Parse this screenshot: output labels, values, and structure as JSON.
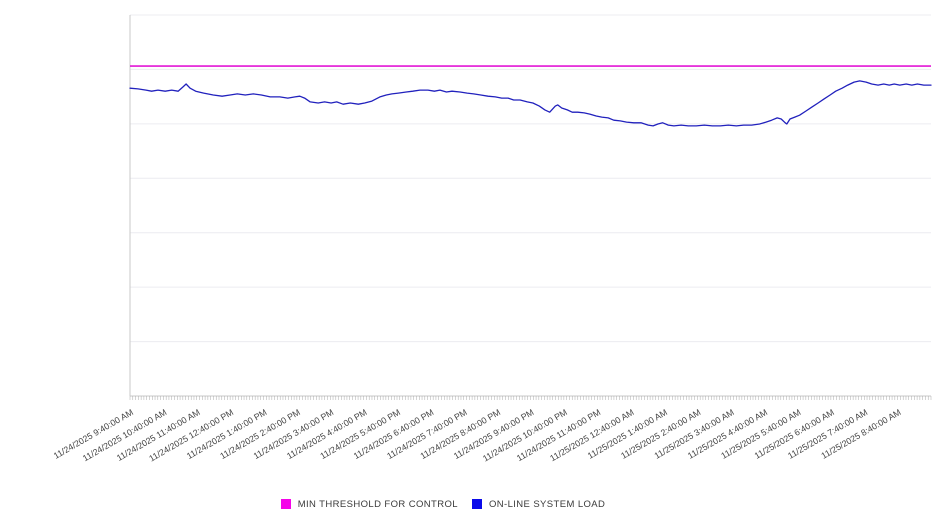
{
  "legend": {
    "items": [
      {
        "label": "MIN THRESHOLD FOR CONTROL",
        "color": "#f503e9",
        "swatch_icon": "magenta-square-icon"
      },
      {
        "label": "ON-LINE SYSTEM LOAD",
        "color": "#0b0bea",
        "swatch_icon": "blue-square-icon"
      }
    ]
  },
  "colors": {
    "threshold_line": "#e316d6",
    "load_line": "#2121bd",
    "gridline": "#ececf0",
    "axis_line": "#c9c9c9",
    "minor_tick": "#a9a9a9",
    "axis_label_text": "#444444",
    "background": "#ffffff"
  },
  "chart_data": {
    "type": "line",
    "title": "",
    "xlabel": "",
    "ylabel": "",
    "y_axis_tick_labels_visible": false,
    "note": "No y-axis tick labels are shown in the chart; series values are expressed as fraction of plot height (0 = bottom gridline, 1 = top gridline).",
    "grid": {
      "horizontal_lines": true,
      "vertical_lines": false,
      "horizontal_divisions": 7
    },
    "legend_position": "bottom-center",
    "x_span_hours": 24,
    "x_labels": [
      "11/24/2025 9:40:00 AM",
      "11/24/2025 10:40:00 AM",
      "11/24/2025 11:40:00 AM",
      "11/24/2025 12:40:00 PM",
      "11/24/2025 1:40:00 PM",
      "11/24/2025 2:40:00 PM",
      "11/24/2025 3:40:00 PM",
      "11/24/2025 4:40:00 PM",
      "11/24/2025 5:40:00 PM",
      "11/24/2025 6:40:00 PM",
      "11/24/2025 7:40:00 PM",
      "11/24/2025 8:40:00 PM",
      "11/24/2025 9:40:00 PM",
      "11/24/2025 10:40:00 PM",
      "11/24/2025 11:40:00 PM",
      "11/25/2025 12:40:00 AM",
      "11/25/2025 1:40:00 AM",
      "11/25/2025 2:40:00 AM",
      "11/25/2025 3:40:00 AM",
      "11/25/2025 4:40:00 AM",
      "11/25/2025 5:40:00 AM",
      "11/25/2025 6:40:00 AM",
      "11/25/2025 7:40:00 AM",
      "11/25/2025 8:40:00 AM"
    ],
    "series": [
      {
        "name": "MIN THRESHOLD FOR CONTROL",
        "style": "constant-horizontal-line",
        "value_fraction": 0.866
      },
      {
        "name": "ON-LINE SYSTEM LOAD",
        "style": "line",
        "hourly_values_fraction": [
          0.808,
          0.801,
          0.801,
          0.79,
          0.79,
          0.785,
          0.769,
          0.769,
          0.795,
          0.803,
          0.798,
          0.785,
          0.772,
          0.756,
          0.735,
          0.719,
          0.717,
          0.709,
          0.711,
          0.717,
          0.732,
          0.79,
          0.827,
          0.819
        ],
        "points_fraction": [
          [
            0.0,
            0.808
          ],
          [
            0.01,
            0.806
          ],
          [
            0.02,
            0.803
          ],
          [
            0.027,
            0.8
          ],
          [
            0.035,
            0.803
          ],
          [
            0.044,
            0.8
          ],
          [
            0.052,
            0.803
          ],
          [
            0.06,
            0.8
          ],
          [
            0.066,
            0.811
          ],
          [
            0.07,
            0.819
          ],
          [
            0.075,
            0.808
          ],
          [
            0.082,
            0.8
          ],
          [
            0.092,
            0.795
          ],
          [
            0.104,
            0.79
          ],
          [
            0.115,
            0.787
          ],
          [
            0.125,
            0.79
          ],
          [
            0.134,
            0.793
          ],
          [
            0.144,
            0.79
          ],
          [
            0.154,
            0.793
          ],
          [
            0.164,
            0.79
          ],
          [
            0.175,
            0.785
          ],
          [
            0.187,
            0.785
          ],
          [
            0.197,
            0.782
          ],
          [
            0.206,
            0.785
          ],
          [
            0.212,
            0.787
          ],
          [
            0.218,
            0.782
          ],
          [
            0.225,
            0.772
          ],
          [
            0.235,
            0.769
          ],
          [
            0.243,
            0.772
          ],
          [
            0.251,
            0.769
          ],
          [
            0.258,
            0.772
          ],
          [
            0.266,
            0.766
          ],
          [
            0.275,
            0.769
          ],
          [
            0.285,
            0.766
          ],
          [
            0.293,
            0.769
          ],
          [
            0.302,
            0.774
          ],
          [
            0.312,
            0.785
          ],
          [
            0.32,
            0.79
          ],
          [
            0.327,
            0.793
          ],
          [
            0.335,
            0.795
          ],
          [
            0.345,
            0.798
          ],
          [
            0.353,
            0.8
          ],
          [
            0.362,
            0.803
          ],
          [
            0.372,
            0.803
          ],
          [
            0.38,
            0.8
          ],
          [
            0.387,
            0.803
          ],
          [
            0.395,
            0.798
          ],
          [
            0.402,
            0.8
          ],
          [
            0.412,
            0.798
          ],
          [
            0.421,
            0.795
          ],
          [
            0.429,
            0.793
          ],
          [
            0.438,
            0.79
          ],
          [
            0.447,
            0.787
          ],
          [
            0.456,
            0.785
          ],
          [
            0.464,
            0.782
          ],
          [
            0.472,
            0.782
          ],
          [
            0.479,
            0.777
          ],
          [
            0.487,
            0.777
          ],
          [
            0.496,
            0.772
          ],
          [
            0.503,
            0.769
          ],
          [
            0.511,
            0.761
          ],
          [
            0.518,
            0.751
          ],
          [
            0.524,
            0.745
          ],
          [
            0.531,
            0.761
          ],
          [
            0.534,
            0.764
          ],
          [
            0.539,
            0.756
          ],
          [
            0.546,
            0.751
          ],
          [
            0.552,
            0.745
          ],
          [
            0.559,
            0.745
          ],
          [
            0.567,
            0.743
          ],
          [
            0.574,
            0.74
          ],
          [
            0.582,
            0.735
          ],
          [
            0.589,
            0.732
          ],
          [
            0.597,
            0.73
          ],
          [
            0.604,
            0.724
          ],
          [
            0.612,
            0.722
          ],
          [
            0.62,
            0.719
          ],
          [
            0.629,
            0.717
          ],
          [
            0.638,
            0.717
          ],
          [
            0.647,
            0.711
          ],
          [
            0.653,
            0.709
          ],
          [
            0.659,
            0.714
          ],
          [
            0.665,
            0.717
          ],
          [
            0.672,
            0.711
          ],
          [
            0.679,
            0.709
          ],
          [
            0.688,
            0.711
          ],
          [
            0.697,
            0.709
          ],
          [
            0.707,
            0.709
          ],
          [
            0.717,
            0.711
          ],
          [
            0.727,
            0.709
          ],
          [
            0.737,
            0.709
          ],
          [
            0.747,
            0.711
          ],
          [
            0.757,
            0.709
          ],
          [
            0.766,
            0.711
          ],
          [
            0.776,
            0.711
          ],
          [
            0.786,
            0.714
          ],
          [
            0.794,
            0.719
          ],
          [
            0.801,
            0.724
          ],
          [
            0.808,
            0.73
          ],
          [
            0.813,
            0.727
          ],
          [
            0.818,
            0.717
          ],
          [
            0.82,
            0.714
          ],
          [
            0.824,
            0.727
          ],
          [
            0.83,
            0.732
          ],
          [
            0.836,
            0.737
          ],
          [
            0.844,
            0.748
          ],
          [
            0.851,
            0.758
          ],
          [
            0.859,
            0.769
          ],
          [
            0.866,
            0.779
          ],
          [
            0.874,
            0.79
          ],
          [
            0.881,
            0.8
          ],
          [
            0.889,
            0.808
          ],
          [
            0.896,
            0.816
          ],
          [
            0.904,
            0.824
          ],
          [
            0.911,
            0.827
          ],
          [
            0.919,
            0.824
          ],
          [
            0.926,
            0.819
          ],
          [
            0.934,
            0.816
          ],
          [
            0.941,
            0.819
          ],
          [
            0.948,
            0.816
          ],
          [
            0.954,
            0.819
          ],
          [
            0.961,
            0.816
          ],
          [
            0.969,
            0.819
          ],
          [
            0.976,
            0.816
          ],
          [
            0.983,
            0.819
          ],
          [
            0.991,
            0.816
          ],
          [
            1.0,
            0.816
          ]
        ]
      }
    ]
  }
}
